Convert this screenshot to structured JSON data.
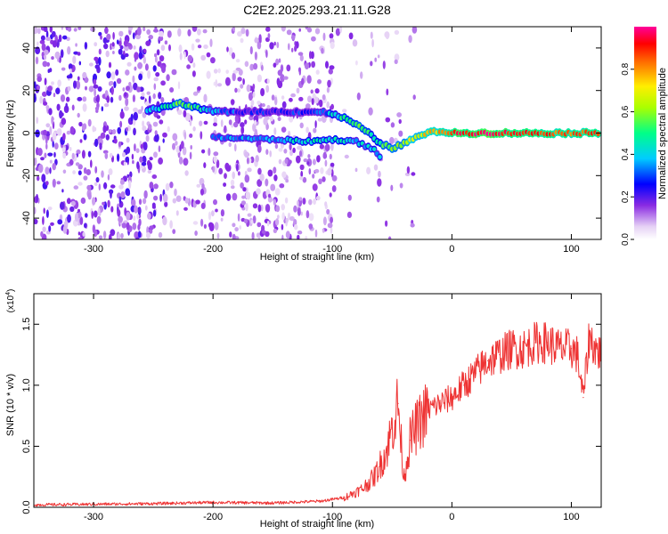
{
  "title": "C2E2.2025.293.21.11.G28",
  "chart_data": [
    {
      "type": "heatmap",
      "panel": "spectrogram",
      "xlabel": "Height of straight line (km)",
      "ylabel": "Frequency (Hz)",
      "xlim": [
        -350,
        125
      ],
      "ylim": [
        -50,
        50
      ],
      "x_ticks": [
        -300,
        -200,
        -100,
        0,
        100
      ],
      "y_ticks": [
        -40,
        -20,
        0,
        20,
        40
      ],
      "colorbar": {
        "label": "Normalized spectral amplitude",
        "range": [
          0,
          1
        ],
        "ticks": [
          "0.0",
          "0.2",
          "0.4",
          "0.6",
          "0.8"
        ]
      },
      "signal_track": [
        {
          "x": -255,
          "freq": 11,
          "amp": 0.35
        },
        {
          "x": -240,
          "freq": 12,
          "amp": 0.45
        },
        {
          "x": -230,
          "freq": 14,
          "amp": 0.55
        },
        {
          "x": -220,
          "freq": 13,
          "amp": 0.55
        },
        {
          "x": -210,
          "freq": 11,
          "amp": 0.45
        },
        {
          "x": -195,
          "freq": 10,
          "amp": 0.35
        },
        {
          "x": -170,
          "freq": 10,
          "amp": 0.25
        },
        {
          "x": -140,
          "freq": 10,
          "amp": 0.25
        },
        {
          "x": -110,
          "freq": 10,
          "amp": 0.3
        },
        {
          "x": -100,
          "freq": 9,
          "amp": 0.4
        },
        {
          "x": -90,
          "freq": 7,
          "amp": 0.5
        },
        {
          "x": -80,
          "freq": 4,
          "amp": 0.55
        },
        {
          "x": -70,
          "freq": 0,
          "amp": 0.5
        },
        {
          "x": -60,
          "freq": -5,
          "amp": 0.5
        },
        {
          "x": -50,
          "freq": -7,
          "amp": 0.6
        },
        {
          "x": -40,
          "freq": -5,
          "amp": 0.65
        },
        {
          "x": -30,
          "freq": -2,
          "amp": 0.7
        },
        {
          "x": -20,
          "freq": 0,
          "amp": 0.75
        },
        {
          "x": -10,
          "freq": 1,
          "amp": 0.8
        },
        {
          "x": 0,
          "freq": 0,
          "amp": 0.9
        },
        {
          "x": 30,
          "freq": 0,
          "amp": 0.95
        },
        {
          "x": 60,
          "freq": 0,
          "amp": 0.9
        },
        {
          "x": 90,
          "freq": 0,
          "amp": 0.85
        },
        {
          "x": 125,
          "freq": 0,
          "amp": 0.85
        }
      ],
      "lower_branch": [
        {
          "x": -200,
          "freq": -2,
          "amp": 0.35
        },
        {
          "x": -150,
          "freq": -3,
          "amp": 0.35
        },
        {
          "x": -120,
          "freq": -4,
          "amp": 0.45
        },
        {
          "x": -100,
          "freq": -3,
          "amp": 0.45
        },
        {
          "x": -80,
          "freq": -4,
          "amp": 0.4
        },
        {
          "x": -65,
          "freq": -8,
          "amp": 0.4
        },
        {
          "x": -58,
          "freq": -13,
          "amp": 0.35
        }
      ]
    },
    {
      "type": "line",
      "panel": "snr",
      "xlabel": "Height of straight line (km)",
      "ylabel": "SNR (10 * v/v)",
      "y_multiplier": "(x10",
      "y_multiplier_exp": "4",
      "xlim": [
        -350,
        125
      ],
      "ylim": [
        0,
        17500
      ],
      "x_ticks": [
        -300,
        -200,
        -100,
        0,
        100
      ],
      "y_ticks": [
        0,
        5000,
        10000,
        15000
      ],
      "y_tick_labels": [
        "0.0",
        "0.5",
        "1.0",
        "1.5"
      ],
      "series": [
        {
          "name": "SNR",
          "color": "#ee3333",
          "x": [
            -350,
            -300,
            -250,
            -200,
            -150,
            -110,
            -90,
            -75,
            -65,
            -55,
            -50,
            -45,
            -42,
            -40,
            -35,
            -30,
            -20,
            -10,
            0,
            10,
            20,
            30,
            40,
            50,
            60,
            70,
            80,
            90,
            100,
            105,
            110,
            115,
            120,
            125
          ],
          "y": [
            200,
            250,
            300,
            400,
            350,
            500,
            800,
            1500,
            2500,
            4500,
            6500,
            8500,
            4500,
            2500,
            5500,
            6500,
            8000,
            8500,
            9000,
            10000,
            11000,
            12000,
            12500,
            13000,
            13000,
            13500,
            13500,
            13000,
            13000,
            12500,
            9000,
            14000,
            13000,
            12500
          ]
        }
      ]
    }
  ]
}
